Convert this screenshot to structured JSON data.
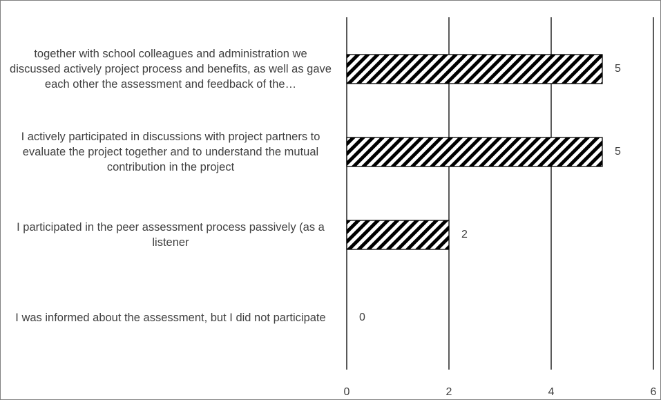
{
  "chart_data": {
    "type": "bar",
    "orientation": "horizontal",
    "categories": [
      "together with school colleagues and administration we discussed actively project process and benefits, as well as gave each other the assessment and feedback of the…",
      "I actively participated in discussions with project partners to evaluate the project together and to understand the mutual contribution in the project",
      "I participated in the peer assessment process passively (as a listener",
      "I was informed about the assessment, but I did not participate"
    ],
    "values": [
      5,
      5,
      2,
      0
    ],
    "color": "#000000",
    "xlim": [
      0,
      6
    ],
    "xticks": [
      0,
      2,
      4,
      6
    ],
    "grid": true,
    "data_labels": true
  }
}
